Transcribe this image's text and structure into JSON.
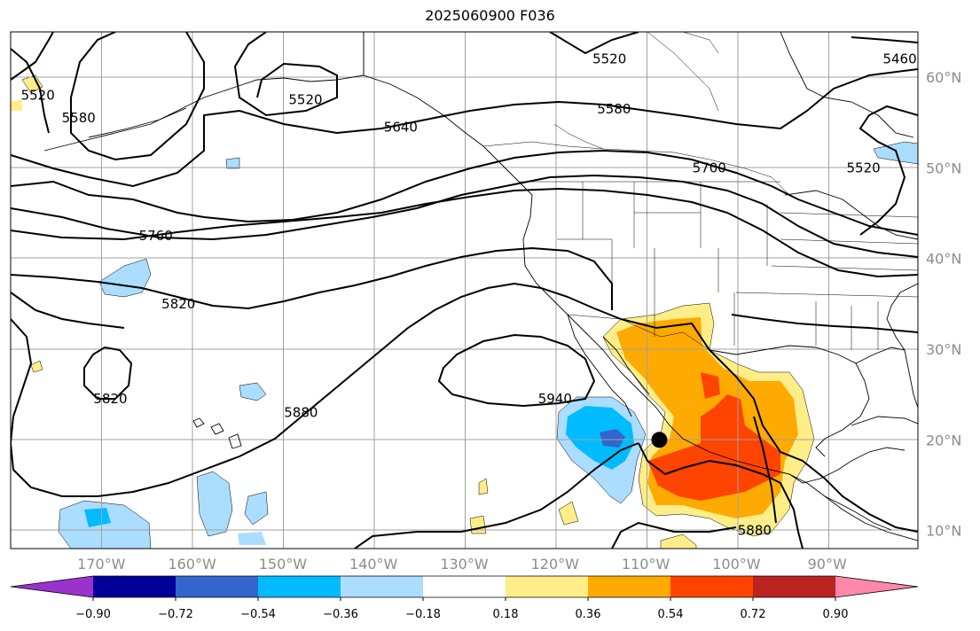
{
  "title": "2025060900 F036",
  "map": {
    "lon_range": [
      -180,
      -80
    ],
    "lat_range": [
      8,
      65
    ],
    "lon_ticks": [
      {
        "value": -170,
        "label": "170°W"
      },
      {
        "value": -160,
        "label": "160°W"
      },
      {
        "value": -150,
        "label": "150°W"
      },
      {
        "value": -140,
        "label": "140°W"
      },
      {
        "value": -130,
        "label": "130°W"
      },
      {
        "value": -120,
        "label": "120°W"
      },
      {
        "value": -110,
        "label": "110°W"
      },
      {
        "value": -100,
        "label": "100°W"
      },
      {
        "value": -90,
        "label": "90°W"
      }
    ],
    "lat_ticks": [
      {
        "value": 10,
        "label": "10°N"
      },
      {
        "value": 20,
        "label": "20°N"
      },
      {
        "value": 30,
        "label": "30°N"
      },
      {
        "value": 40,
        "label": "40°N"
      },
      {
        "value": 50,
        "label": "50°N"
      },
      {
        "value": 60,
        "label": "60°N"
      }
    ],
    "contour_labels": [
      {
        "text": "5460",
        "lon": -82,
        "lat": 62
      },
      {
        "text": "5520",
        "lon": -114,
        "lat": 62
      },
      {
        "text": "5520",
        "lon": -177,
        "lat": 58
      },
      {
        "text": "5520",
        "lon": -147.5,
        "lat": 57.5
      },
      {
        "text": "5520",
        "lon": -86,
        "lat": 50
      },
      {
        "text": "5580",
        "lon": -172.5,
        "lat": 55.5
      },
      {
        "text": "5580",
        "lon": -113.5,
        "lat": 56.5
      },
      {
        "text": "5640",
        "lon": -137,
        "lat": 54.5
      },
      {
        "text": "5700",
        "lon": -103,
        "lat": 50
      },
      {
        "text": "5760",
        "lon": -164,
        "lat": 42.5
      },
      {
        "text": "5820",
        "lon": -161.5,
        "lat": 35
      },
      {
        "text": "5820",
        "lon": -169,
        "lat": 24.5
      },
      {
        "text": "5880",
        "lon": -148,
        "lat": 23
      },
      {
        "text": "5880",
        "lon": -98,
        "lat": 10
      },
      {
        "text": "5940",
        "lon": -120,
        "lat": 24.5
      }
    ],
    "marker": {
      "name": "point-marker",
      "lon": -108.5,
      "lat": 20
    }
  },
  "colorbar": {
    "colors": [
      "#9933cc",
      "#000099",
      "#3366cc",
      "#00bbff",
      "#aaddff",
      "#ffffff",
      "#ffee88",
      "#ffaa00",
      "#ff4400",
      "#bb2222",
      "#ff88aa"
    ],
    "ticks": [
      {
        "value": -0.9,
        "label": "−0.90"
      },
      {
        "value": -0.72,
        "label": "−0.72"
      },
      {
        "value": -0.54,
        "label": "−0.54"
      },
      {
        "value": -0.36,
        "label": "−0.36"
      },
      {
        "value": -0.18,
        "label": "−0.18"
      },
      {
        "value": 0.18,
        "label": "0.18"
      },
      {
        "value": 0.36,
        "label": "0.36"
      },
      {
        "value": 0.54,
        "label": "0.54"
      },
      {
        "value": 0.72,
        "label": "0.72"
      },
      {
        "value": 0.9,
        "label": "0.90"
      }
    ]
  }
}
